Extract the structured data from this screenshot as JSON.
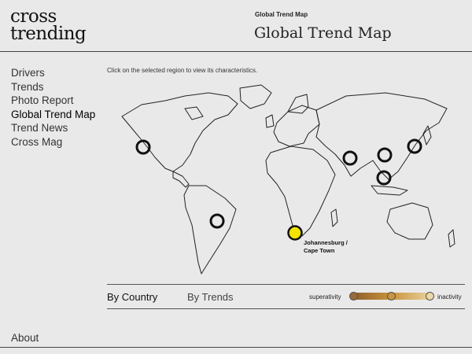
{
  "logo": {
    "line1": "cross",
    "line2": "trending"
  },
  "header": {
    "breadcrumb": "Global Trend Map",
    "title": "Global Trend Map"
  },
  "nav": {
    "items": [
      {
        "label": "Drivers",
        "active": false
      },
      {
        "label": "Trends",
        "active": false
      },
      {
        "label": "Photo Report",
        "active": false
      },
      {
        "label": "Global Trend Map",
        "active": true
      },
      {
        "label": "Trend News",
        "active": false
      },
      {
        "label": "Cross Mag",
        "active": false
      }
    ],
    "about": "About"
  },
  "main": {
    "instruction": "Click on the selected region to view its characteristics.",
    "selected_city": {
      "line1": "Johannesburg /",
      "line2": "Cape Town"
    },
    "tabs": {
      "by_country": "By Country",
      "by_trends": "By Trends"
    },
    "legend": {
      "left": "superativity",
      "right": "inactivity"
    }
  },
  "colors": {
    "selected": "#f2e300",
    "gradient_start": "#8a5a2a",
    "gradient_end": "#ecd8a6"
  }
}
